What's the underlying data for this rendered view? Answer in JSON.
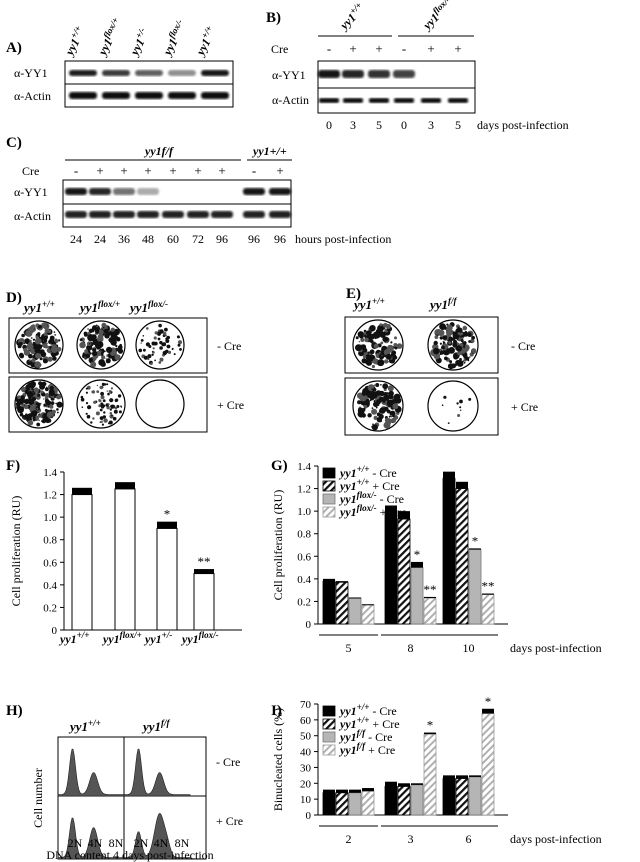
{
  "panels": {
    "A": {
      "label": "A)",
      "genotypes": [
        "yy1+/+",
        "yy1flox/+",
        "yy1+/-",
        "yy1flox/-",
        "yy1+/+"
      ],
      "blot_rows": [
        "α-YY1",
        "α-Actin"
      ],
      "yy1_band_intensity": [
        0.9,
        0.75,
        0.55,
        0.3,
        0.95
      ]
    },
    "B": {
      "label": "B)",
      "genotypes": [
        "yy1+/+",
        "yy1flox/-"
      ],
      "cre_label": "Cre",
      "cre": [
        "-",
        "+",
        "+",
        "-",
        "+",
        "+"
      ],
      "blot_rows": [
        "α-YY1",
        "α-Actin"
      ],
      "days": [
        "0",
        "3",
        "5",
        "0",
        "3",
        "5"
      ],
      "days_caption": "days post-infection",
      "yy1_band_intensity": [
        0.95,
        0.85,
        0.8,
        0.7,
        0,
        0
      ]
    },
    "C": {
      "label": "C)",
      "genotypes": [
        "yy1f/f",
        "yy1+/+"
      ],
      "cre_label": "Cre",
      "cre": [
        "-",
        "+",
        "+",
        "+",
        "+",
        "+",
        "+",
        "-",
        "+"
      ],
      "blot_rows": [
        "α-YY1",
        "α-Actin"
      ],
      "hours": [
        "24",
        "24",
        "36",
        "48",
        "60",
        "72",
        "96",
        "96",
        "96"
      ],
      "hours_caption": "hours post-infection",
      "yy1_band_intensity": [
        0.95,
        0.85,
        0.45,
        0.15,
        0,
        0,
        0,
        0.95,
        0.95
      ]
    },
    "D": {
      "label": "D)",
      "genotypes": [
        "yy1+/+",
        "yy1flox/+",
        "yy1flox/-"
      ],
      "rows": [
        "- Cre",
        "+ Cre"
      ],
      "colony_density": [
        [
          0.85,
          0.7,
          0.35
        ],
        [
          0.9,
          0.45,
          0.0
        ]
      ]
    },
    "E": {
      "label": "E)",
      "genotypes": [
        "yy1+/+",
        "yy1f/f"
      ],
      "rows": [
        "- Cre",
        "+ Cre"
      ],
      "colony_density": [
        [
          0.7,
          0.75
        ],
        [
          0.7,
          0.05
        ]
      ]
    },
    "H": {
      "label": "H)",
      "genotypes": [
        "yy1+/+",
        "yy1f/f"
      ],
      "rows": [
        "- Cre",
        "+ Cre"
      ],
      "ylabel": "Cell number",
      "xticks": [
        "2N",
        "4N",
        "8N"
      ],
      "xlabel": "DNA content 4 days post-infection"
    },
    "F": {
      "label": "F)"
    },
    "G": {
      "label": "G)"
    },
    "I": {
      "label": "I)"
    }
  },
  "chart_data": [
    {
      "panel": "F",
      "type": "bar",
      "categories": [
        "yy1+/+",
        "yy1flox/+",
        "yy1+/-",
        "yy1flox/-"
      ],
      "values": [
        1.2,
        1.25,
        0.9,
        0.5
      ],
      "errors": [
        0.06,
        0.06,
        0.06,
        0.04
      ],
      "significance": [
        "",
        "",
        "*",
        "**"
      ],
      "ylabel": "Cell proliferation (RU)",
      "ylim": [
        0,
        1.4
      ],
      "yticks": [
        "0",
        "0.2",
        "0.4",
        "0.6",
        "0.8",
        "1.0",
        "1.2",
        "1.4"
      ]
    },
    {
      "panel": "G",
      "type": "bar",
      "categories": [
        "5",
        "8",
        "10"
      ],
      "series": [
        {
          "name": "yy1+/+ - Cre",
          "values": [
            0.38,
            1.0,
            1.29
          ],
          "errors": [
            0.02,
            0.05,
            0.06
          ]
        },
        {
          "name": "yy1+/+ + Cre",
          "values": [
            0.37,
            0.93,
            1.2
          ],
          "errors": [
            0.01,
            0.07,
            0.06
          ]
        },
        {
          "name": "yy1flox/- - Cre",
          "values": [
            0.23,
            0.5,
            0.66
          ],
          "errors": [
            0.005,
            0.05,
            0.01
          ]
        },
        {
          "name": "yy1flox/- + Cre",
          "values": [
            0.17,
            0.23,
            0.26
          ],
          "errors": [
            0.005,
            0.01,
            0.01
          ]
        }
      ],
      "significance": [
        [
          "",
          "",
          "",
          ""
        ],
        [
          "",
          "",
          "*",
          "**"
        ],
        [
          "",
          "",
          "*",
          "**"
        ]
      ],
      "ylabel": "Cell proliferation (RU)",
      "xlabel": "days post-infection",
      "ylim": [
        0,
        1.4
      ],
      "yticks": [
        "0",
        "0.2",
        "0.4",
        "0.6",
        "0.8",
        "1.0",
        "1.2",
        "1.4"
      ],
      "legend": "top-left"
    },
    {
      "panel": "I",
      "type": "bar",
      "categories": [
        "2",
        "3",
        "6"
      ],
      "series": [
        {
          "name": "yy1+/+ - Cre",
          "values": [
            14,
            18,
            23
          ],
          "errors": [
            2,
            3,
            2
          ]
        },
        {
          "name": "yy1+/+ + Cre",
          "values": [
            14,
            18,
            23
          ],
          "errors": [
            2,
            2,
            2
          ]
        },
        {
          "name": "yy1f/f - Cre",
          "values": [
            14,
            19,
            24
          ],
          "errors": [
            2,
            1,
            1
          ]
        },
        {
          "name": "yy1f/f + Cre",
          "values": [
            15,
            51,
            64
          ],
          "errors": [
            2,
            1,
            3
          ]
        }
      ],
      "significance": [
        [
          "",
          "",
          "",
          ""
        ],
        [
          "",
          "",
          "",
          "*"
        ],
        [
          "",
          "",
          "",
          "*"
        ]
      ],
      "ylabel": "Binucleated cells (%)",
      "xlabel": "days post-infection",
      "ylim": [
        0,
        70
      ],
      "yticks": [
        "0",
        "10",
        "20",
        "30",
        "40",
        "50",
        "60",
        "70"
      ],
      "legend": "top-left"
    }
  ]
}
